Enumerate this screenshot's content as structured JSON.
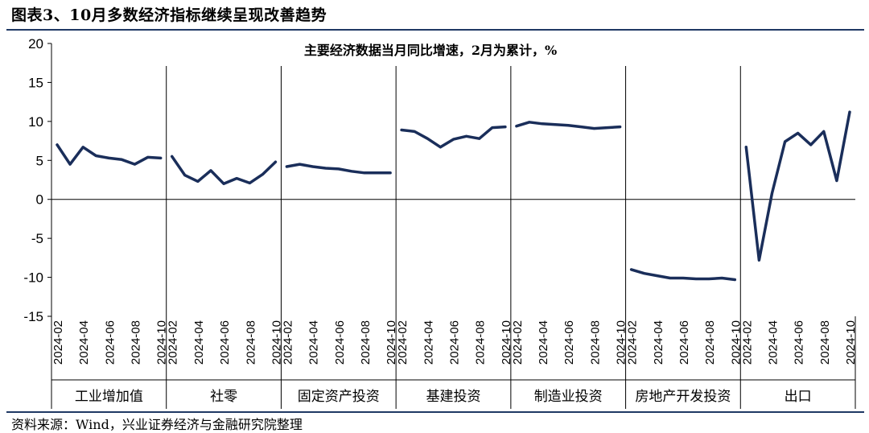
{
  "figure": {
    "title": "图表3、10月多数经济指标继续呈现改善趋势",
    "source": "资料来源：Wind，兴业证券经济与金融研究院整理"
  },
  "colors": {
    "line": "#1a2e5a",
    "axis": "#000000",
    "rule": "#1f3864"
  },
  "chart_data": {
    "type": "line",
    "title": "主要经济数据当月同比增速，2月为累计，%",
    "ylim": [
      -15,
      20
    ],
    "yticks": [
      20,
      15,
      10,
      5,
      0,
      -5,
      -10,
      -15
    ],
    "grid": false,
    "legend": "none",
    "x": [
      "2024-02",
      "2024-03",
      "2024-04",
      "2024-05",
      "2024-06",
      "2024-07",
      "2024-08",
      "2024-09",
      "2024-10"
    ],
    "x_tick_labels": [
      "2024-02",
      "2024-04",
      "2024-06",
      "2024-08",
      "2024-10"
    ],
    "series": [
      {
        "name": "工业增加值",
        "values": [
          7.0,
          4.5,
          6.7,
          5.6,
          5.3,
          5.1,
          4.5,
          5.4,
          5.3
        ]
      },
      {
        "name": "社零",
        "values": [
          5.5,
          3.1,
          2.3,
          3.7,
          2.0,
          2.7,
          2.1,
          3.2,
          4.8
        ]
      },
      {
        "name": "固定资产投资",
        "values": [
          4.2,
          4.5,
          4.2,
          4.0,
          3.9,
          3.6,
          3.4,
          3.4,
          3.4
        ]
      },
      {
        "name": "基建投资",
        "values": [
          8.9,
          8.7,
          7.8,
          6.7,
          7.7,
          8.1,
          7.8,
          9.2,
          9.3
        ]
      },
      {
        "name": "制造业投资",
        "values": [
          9.4,
          9.9,
          9.7,
          9.6,
          9.5,
          9.3,
          9.1,
          9.2,
          9.3
        ]
      },
      {
        "name": "房地产开发投资",
        "values": [
          -9.0,
          -9.5,
          -9.8,
          -10.1,
          -10.1,
          -10.2,
          -10.2,
          -10.1,
          -10.3
        ]
      },
      {
        "name": "出口",
        "values": [
          6.7,
          -7.8,
          0.8,
          7.4,
          8.5,
          7.0,
          8.7,
          2.4,
          11.2
        ]
      }
    ]
  }
}
